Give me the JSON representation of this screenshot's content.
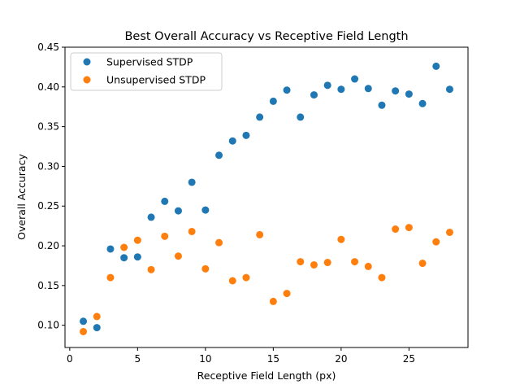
{
  "chart_data": {
    "type": "scatter",
    "title": "Best Overall Accuracy vs Receptive Field Length",
    "xlabel": "Receptive Field Length (px)",
    "ylabel": "Overall Accuracy",
    "xlim": [
      -0.35,
      29.35
    ],
    "ylim": [
      0.072,
      0.45
    ],
    "xticks": [
      0,
      5,
      10,
      15,
      20,
      25
    ],
    "xtick_labels": [
      "0",
      "5",
      "10",
      "15",
      "20",
      "25"
    ],
    "yticks": [
      0.1,
      0.15,
      0.2,
      0.25,
      0.3,
      0.35,
      0.4,
      0.45
    ],
    "ytick_labels": [
      "0.10",
      "0.15",
      "0.20",
      "0.25",
      "0.30",
      "0.35",
      "0.40",
      "0.45"
    ],
    "grid": false,
    "legend_position": "top-left",
    "series": [
      {
        "name": "Supervised STDP",
        "color": "#1f77b4",
        "x": [
          1,
          2,
          3,
          4,
          5,
          6,
          7,
          8,
          9,
          10,
          11,
          12,
          13,
          14,
          15,
          16,
          17,
          18,
          19,
          20,
          21,
          22,
          23,
          24,
          25,
          26,
          27,
          28
        ],
        "y": [
          0.105,
          0.097,
          0.196,
          0.185,
          0.186,
          0.236,
          0.256,
          0.244,
          0.28,
          0.245,
          0.314,
          0.332,
          0.339,
          0.362,
          0.382,
          0.396,
          0.362,
          0.39,
          0.402,
          0.397,
          0.41,
          0.398,
          0.377,
          0.395,
          0.391,
          0.379,
          0.426,
          0.397
        ]
      },
      {
        "name": "Unsupervised STDP",
        "color": "#ff7f0e",
        "x": [
          1,
          2,
          3,
          4,
          5,
          6,
          7,
          8,
          9,
          10,
          11,
          12,
          13,
          14,
          15,
          16,
          17,
          18,
          19,
          20,
          21,
          22,
          23,
          24,
          25,
          26,
          27,
          28
        ],
        "y": [
          0.092,
          0.111,
          0.16,
          0.198,
          0.207,
          0.17,
          0.212,
          0.187,
          0.218,
          0.171,
          0.204,
          0.156,
          0.16,
          0.214,
          0.13,
          0.14,
          0.18,
          0.176,
          0.179,
          0.208,
          0.18,
          0.174,
          0.16,
          0.221,
          0.223,
          0.178,
          0.205,
          0.217
        ]
      }
    ]
  }
}
